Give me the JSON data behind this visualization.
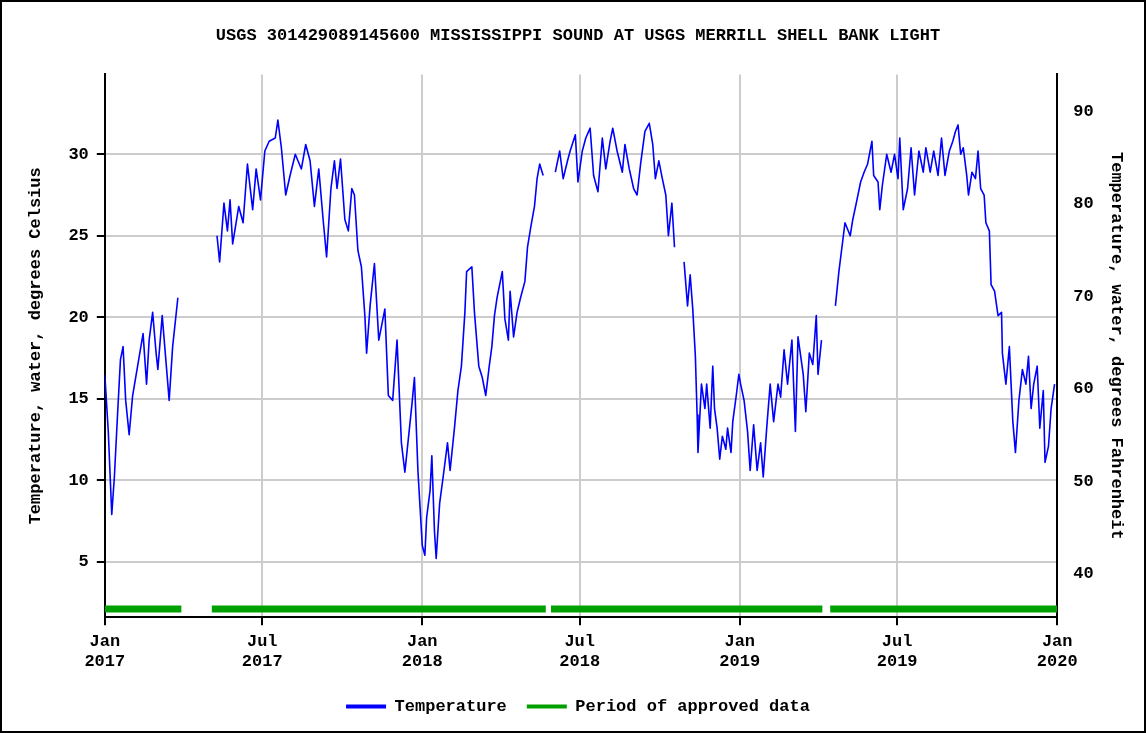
{
  "chart_data": {
    "type": "line",
    "title": "USGS 301429089145600 MISSISSIPPI SOUND AT USGS MERRILL SHELL BANK LIGHT",
    "ylabel": "Temperature, water, degrees Celsius",
    "y2label": "Temperature, water, degrees Fahrenheit",
    "xlim": [
      "2017-01-01",
      "2020-01-01"
    ],
    "xticks": [
      {
        "value": "2017-01-01",
        "label": "Jan\n2017"
      },
      {
        "value": "2017-07-01",
        "label": "Jul\n2017"
      },
      {
        "value": "2018-01-01",
        "label": "Jan\n2018"
      },
      {
        "value": "2018-07-01",
        "label": "Jul\n2018"
      },
      {
        "value": "2019-01-01",
        "label": "Jan\n2019"
      },
      {
        "value": "2019-07-01",
        "label": "Jul\n2019"
      },
      {
        "value": "2020-01-01",
        "label": "Jan\n2020"
      }
    ],
    "ylim": [
      1.6,
      34.9
    ],
    "yticks": [
      5,
      10,
      15,
      20,
      25,
      30
    ],
    "y2lim": [
      35.3,
      94
    ],
    "y2ticks": [
      40,
      50,
      60,
      70,
      80,
      90
    ],
    "grid": true,
    "legend": "bottom",
    "marker": "none",
    "line_style": "solid",
    "series": [
      {
        "name": "Temperature",
        "color": "#0000ff",
        "x": [
          "2017-01-01",
          "2017-01-05",
          "2017-01-09",
          "2017-01-12",
          "2017-01-16",
          "2017-01-19",
          "2017-01-22",
          "2017-01-25",
          "2017-01-29",
          "2017-02-02",
          "2017-02-08",
          "2017-02-14",
          "2017-02-18",
          "2017-02-21",
          "2017-02-25",
          "2017-03-01",
          "2017-03-03",
          "2017-03-08",
          "2017-03-16",
          "2017-03-20",
          "2017-03-26",
          "2017-04-15",
          "2017-05-10",
          "2017-05-13",
          "2017-05-18",
          "2017-05-22",
          "2017-05-25",
          "2017-05-28",
          "2017-06-04",
          "2017-06-09",
          "2017-06-14",
          "2017-06-20",
          "2017-06-24",
          "2017-06-29",
          "2017-07-04",
          "2017-07-09",
          "2017-07-16",
          "2017-07-19",
          "2017-07-23",
          "2017-07-28",
          "2017-08-02",
          "2017-08-08",
          "2017-08-15",
          "2017-08-20",
          "2017-08-25",
          "2017-08-30",
          "2017-09-04",
          "2017-09-09",
          "2017-09-13",
          "2017-09-18",
          "2017-09-22",
          "2017-09-25",
          "2017-09-29",
          "2017-10-04",
          "2017-10-08",
          "2017-10-12",
          "2017-10-15",
          "2017-10-19",
          "2017-10-23",
          "2017-10-27",
          "2017-10-29",
          "2017-11-02",
          "2017-11-07",
          "2017-11-12",
          "2017-11-19",
          "2017-11-23",
          "2017-11-28",
          "2017-12-03",
          "2017-12-08",
          "2017-12-12",
          "2017-12-20",
          "2017-12-23",
          "2017-12-27",
          "2018-01-01",
          "2018-01-04",
          "2018-01-06",
          "2018-01-10",
          "2018-01-12",
          "2018-01-15",
          "2018-01-17",
          "2018-01-21",
          "2018-01-25",
          "2018-01-30",
          "2018-02-02",
          "2018-02-07",
          "2018-02-11",
          "2018-02-15",
          "2018-02-19",
          "2018-02-21",
          "2018-02-27",
          "2018-03-02",
          "2018-03-07",
          "2018-03-11",
          "2018-03-15",
          "2018-03-19",
          "2018-03-22",
          "2018-03-25",
          "2018-03-28",
          "2018-04-03",
          "2018-04-06",
          "2018-04-10",
          "2018-04-12",
          "2018-04-16",
          "2018-04-20",
          "2018-04-24",
          "2018-04-29",
          "2018-05-02",
          "2018-05-06",
          "2018-05-10",
          "2018-05-13",
          "2018-05-16",
          "2018-05-20",
          "2018-05-28",
          "2018-06-03",
          "2018-06-08",
          "2018-06-12",
          "2018-06-17",
          "2018-06-20",
          "2018-06-26",
          "2018-06-29",
          "2018-07-04",
          "2018-07-08",
          "2018-07-13",
          "2018-07-17",
          "2018-07-22",
          "2018-07-27",
          "2018-07-31",
          "2018-08-05",
          "2018-08-08",
          "2018-08-13",
          "2018-08-19",
          "2018-08-22",
          "2018-08-27",
          "2018-09-01",
          "2018-09-05",
          "2018-09-09",
          "2018-09-14",
          "2018-09-19",
          "2018-09-23",
          "2018-09-26",
          "2018-09-30",
          "2018-10-04",
          "2018-10-08",
          "2018-10-11",
          "2018-10-15",
          "2018-10-18",
          "2018-10-24",
          "2018-10-29",
          "2018-11-02",
          "2018-11-05",
          "2018-11-08",
          "2018-11-11",
          "2018-11-13",
          "2018-11-14",
          "2018-11-18",
          "2018-11-22",
          "2018-11-24",
          "2018-11-28",
          "2018-12-01",
          "2018-12-03",
          "2018-12-06",
          "2018-12-09",
          "2018-12-12",
          "2018-12-16",
          "2018-12-18",
          "2018-12-22",
          "2018-12-24",
          "2018-12-28",
          "2018-12-31",
          "2019-01-02",
          "2019-01-06",
          "2019-01-10",
          "2019-01-13",
          "2019-01-17",
          "2019-01-21",
          "2019-01-25",
          "2019-01-28",
          "2019-02-01",
          "2019-02-05",
          "2019-02-09",
          "2019-02-14",
          "2019-02-17",
          "2019-02-21",
          "2019-02-25",
          "2019-03-02",
          "2019-03-06",
          "2019-03-09",
          "2019-03-15",
          "2019-03-18",
          "2019-03-22",
          "2019-03-26",
          "2019-03-30",
          "2019-04-01",
          "2019-04-05",
          "2019-04-12",
          "2019-04-21",
          "2019-04-25",
          "2019-04-29",
          "2019-05-02",
          "2019-05-08",
          "2019-05-11",
          "2019-05-15",
          "2019-05-20",
          "2019-05-24",
          "2019-05-28",
          "2019-06-02",
          "2019-06-04",
          "2019-06-09",
          "2019-06-11",
          "2019-06-14",
          "2019-06-19",
          "2019-06-24",
          "2019-06-28",
          "2019-07-02",
          "2019-07-04",
          "2019-07-08",
          "2019-07-13",
          "2019-07-17",
          "2019-07-21",
          "2019-07-26",
          "2019-07-31",
          "2019-08-03",
          "2019-08-08",
          "2019-08-12",
          "2019-08-17",
          "2019-08-21",
          "2019-08-25",
          "2019-08-30",
          "2019-09-03",
          "2019-09-06",
          "2019-09-09",
          "2019-09-12",
          "2019-09-15",
          "2019-09-19",
          "2019-09-21",
          "2019-09-25",
          "2019-09-29",
          "2019-10-02",
          "2019-10-05",
          "2019-10-09",
          "2019-10-11",
          "2019-10-15",
          "2019-10-17",
          "2019-10-21",
          "2019-10-25",
          "2019-10-29",
          "2019-10-30",
          "2019-11-03",
          "2019-11-07",
          "2019-11-11",
          "2019-11-14",
          "2019-11-18",
          "2019-11-22",
          "2019-11-26",
          "2019-11-29",
          "2019-12-02",
          "2019-12-05",
          "2019-12-09",
          "2019-12-12",
          "2019-12-16",
          "2019-12-18",
          "2019-12-22",
          "2019-12-25",
          "2019-12-29"
        ],
        "values": [
          16.5,
          13.0,
          7.9,
          10.2,
          14.4,
          17.4,
          18.2,
          14.9,
          12.8,
          15.2,
          17.1,
          19.0,
          15.9,
          18.6,
          20.3,
          17.8,
          16.8,
          20.1,
          14.9,
          18.2,
          21.2,
          null,
          25.0,
          23.4,
          27.0,
          25.3,
          27.2,
          24.5,
          26.8,
          25.8,
          29.4,
          26.6,
          29.1,
          27.2,
          30.2,
          30.8,
          31.0,
          32.1,
          30.4,
          27.5,
          28.7,
          30.0,
          29.1,
          30.6,
          29.6,
          26.8,
          29.1,
          26.0,
          23.7,
          27.9,
          29.6,
          27.9,
          29.7,
          26.0,
          25.3,
          27.9,
          27.5,
          24.1,
          23.1,
          20.1,
          17.8,
          20.7,
          23.3,
          18.6,
          20.5,
          15.2,
          14.9,
          18.6,
          12.3,
          10.5,
          14.6,
          16.3,
          10.6,
          6.0,
          5.4,
          7.7,
          9.4,
          11.5,
          6.9,
          5.2,
          8.6,
          10.2,
          12.3,
          10.6,
          13.2,
          15.5,
          17.0,
          20.3,
          22.8,
          23.1,
          20.3,
          17.0,
          16.3,
          15.2,
          17.0,
          18.2,
          20.1,
          21.2,
          22.8,
          19.9,
          18.6,
          21.6,
          18.8,
          20.3,
          21.2,
          22.2,
          24.3,
          25.6,
          26.8,
          28.5,
          29.4,
          28.7,
          null,
          28.9,
          30.2,
          28.5,
          29.6,
          30.2,
          31.2,
          28.3,
          30.2,
          31.0,
          31.6,
          28.7,
          27.7,
          31.0,
          29.1,
          30.8,
          31.6,
          30.2,
          28.9,
          30.6,
          29.1,
          27.9,
          27.5,
          29.4,
          31.4,
          31.9,
          30.6,
          28.5,
          29.6,
          28.5,
          27.5,
          25.0,
          27.0,
          24.3,
          null,
          23.4,
          20.7,
          22.6,
          20.5,
          17.6,
          14.0,
          11.7,
          15.9,
          14.4,
          15.9,
          13.2,
          17.0,
          14.4,
          13.2,
          11.3,
          12.7,
          11.9,
          13.2,
          11.7,
          13.6,
          15.2,
          16.5,
          15.9,
          14.9,
          13.0,
          10.6,
          13.4,
          10.6,
          12.3,
          10.2,
          13.2,
          15.9,
          13.6,
          15.9,
          15.1,
          18.0,
          15.9,
          18.6,
          13.0,
          18.8,
          16.5,
          14.2,
          17.8,
          17.1,
          20.1,
          16.5,
          18.6,
          null,
          20.7,
          22.8,
          24.5,
          25.8,
          25.0,
          26.0,
          27.0,
          28.3,
          28.9,
          29.4,
          30.8,
          28.7,
          28.3,
          26.6,
          28.1,
          30.0,
          28.9,
          30.0,
          28.5,
          31.0,
          26.6,
          27.9,
          30.4,
          27.5,
          30.2,
          28.9,
          30.4,
          28.9,
          30.2,
          28.7,
          31.0,
          28.7,
          30.2,
          30.8,
          31.4,
          31.8,
          30.0,
          30.4,
          28.7,
          27.5,
          28.9,
          28.5,
          30.2,
          27.9,
          27.5,
          25.8,
          25.3,
          22.0,
          21.6,
          20.1,
          20.3,
          17.8,
          15.9,
          18.2,
          13.6,
          11.7,
          14.9,
          16.8,
          15.9,
          17.6,
          14.4,
          15.9,
          17.0,
          13.2,
          15.5,
          11.1,
          12.1,
          14.4,
          15.9
        ]
      },
      {
        "name": "Period of approved data",
        "color": "#00a000",
        "x": [
          "2017-01-01",
          "2017-03-30",
          "2017-04-15",
          "2017-05-04",
          "2018-05-23",
          "2018-05-26",
          "2018-05-29",
          "2019-04-06",
          "2019-04-10",
          "2019-04-15",
          "2020-01-01"
        ],
        "values": [
          2.1,
          2.1,
          null,
          2.1,
          2.1,
          null,
          2.1,
          2.1,
          null,
          2.1,
          2.1
        ]
      }
    ]
  }
}
